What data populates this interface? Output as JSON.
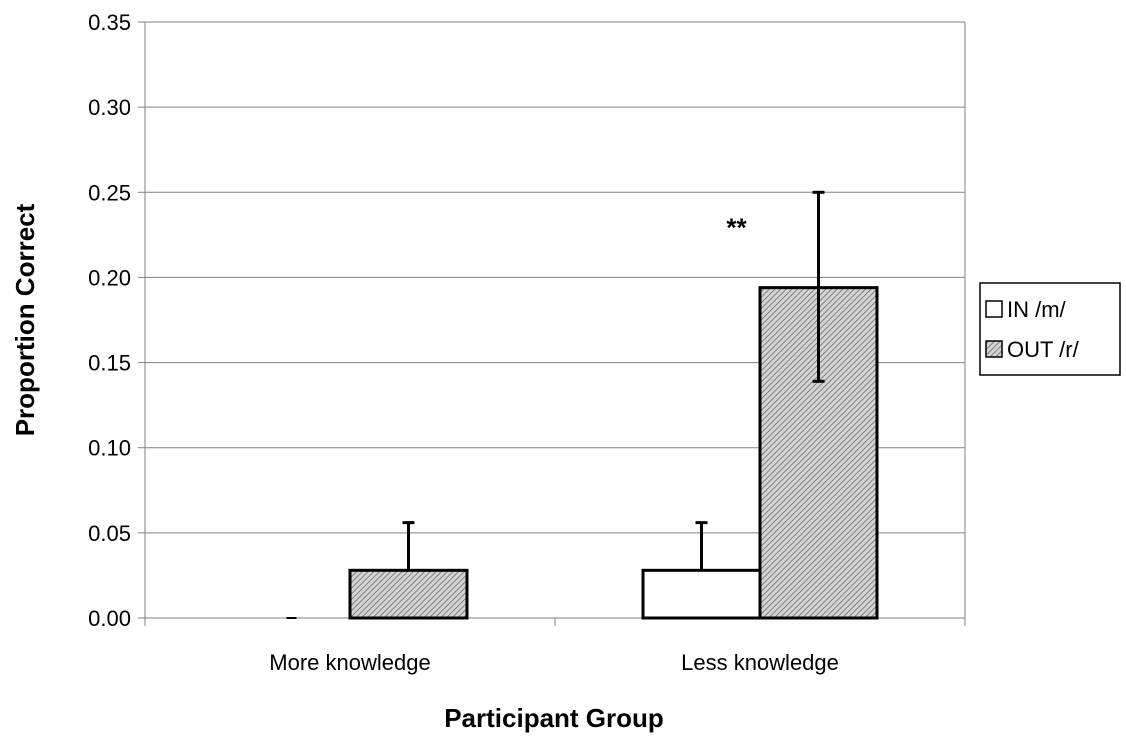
{
  "chart_data": {
    "type": "bar",
    "categories": [
      "More knowledge",
      "Less knowledge"
    ],
    "series": [
      {
        "name": "IN /m/",
        "values": [
          0.0,
          0.028
        ],
        "error_upper": [
          0.0,
          0.056
        ],
        "fill": "#ffffff",
        "pattern": "none"
      },
      {
        "name": "OUT /r/",
        "values": [
          0.028,
          0.194
        ],
        "error_upper": [
          0.056,
          0.25
        ],
        "error_lower": [
          null,
          0.139
        ],
        "fill": "#bbbbbb",
        "pattern": "diagonal-hatch"
      }
    ],
    "xlabel": "Participant Group",
    "ylabel": "Proportion Correct",
    "ylim": [
      0,
      0.35
    ],
    "yticks": [
      "0.00",
      "0.05",
      "0.10",
      "0.15",
      "0.20",
      "0.25",
      "0.30",
      "0.35"
    ],
    "ytick_values": [
      0,
      0.05,
      0.1,
      0.15,
      0.2,
      0.25,
      0.3,
      0.35
    ],
    "grid": true,
    "legend_position": "right",
    "annotations": [
      {
        "text": "**",
        "category": "Less knowledge",
        "series": "OUT /r/"
      }
    ],
    "colors": {
      "grid": "#808080",
      "axis": "#808080",
      "bar_edge": "#000000"
    }
  }
}
